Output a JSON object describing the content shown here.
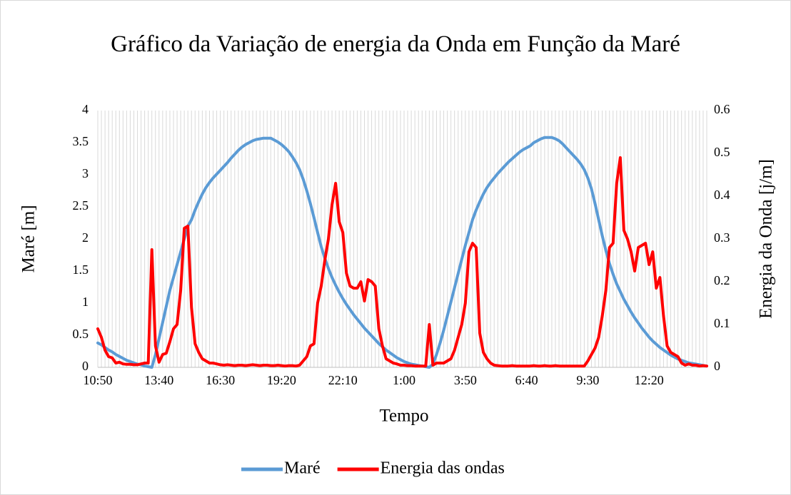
{
  "chart_data": {
    "type": "line",
    "title": "Gráfico da Variação de energia da Onda em Função da Maré",
    "x_label": "Tempo",
    "y_label": "Maré [m]",
    "y2_label": "Energia da Onda [j/m]",
    "categories": [
      "10:50",
      null,
      null,
      null,
      null,
      null,
      null,
      null,
      null,
      null,
      null,
      null,
      null,
      null,
      null,
      null,
      null,
      "13:40",
      null,
      null,
      null,
      null,
      null,
      null,
      null,
      null,
      null,
      null,
      null,
      null,
      null,
      null,
      null,
      null,
      "16:30",
      null,
      null,
      null,
      null,
      null,
      null,
      null,
      null,
      null,
      null,
      null,
      null,
      null,
      null,
      null,
      null,
      "19:20",
      null,
      null,
      null,
      null,
      null,
      null,
      null,
      null,
      null,
      null,
      null,
      null,
      null,
      null,
      null,
      null,
      "22:10",
      null,
      null,
      null,
      null,
      null,
      null,
      null,
      null,
      null,
      null,
      null,
      null,
      null,
      null,
      null,
      null,
      "1:00",
      null,
      null,
      null,
      null,
      null,
      null,
      null,
      null,
      null,
      null,
      null,
      null,
      null,
      null,
      null,
      null,
      "3:50",
      null,
      null,
      null,
      null,
      null,
      null,
      null,
      null,
      null,
      null,
      null,
      null,
      null,
      null,
      null,
      null,
      "6:40",
      null,
      null,
      null,
      null,
      null,
      null,
      null,
      null,
      null,
      null,
      null,
      null,
      null,
      null,
      null,
      null,
      "9:30",
      null,
      null,
      null,
      null,
      null,
      null,
      null,
      null,
      null,
      null,
      null,
      null,
      null,
      null,
      null,
      null,
      "12:20",
      null,
      null,
      null,
      null,
      null,
      null,
      null,
      null,
      null,
      null,
      null,
      null,
      null,
      null,
      null,
      null
    ],
    "series": [
      {
        "name": "Maré",
        "color": "#5b9bd5",
        "values": [
          0.38,
          0.35,
          0.31,
          0.27,
          0.24,
          0.2,
          0.17,
          0.14,
          0.11,
          0.09,
          0.07,
          0.05,
          0.04,
          0.02,
          0.01,
          0,
          0.2,
          0.45,
          0.7,
          0.95,
          1.2,
          1.4,
          1.6,
          1.8,
          2.0,
          2.2,
          2.3,
          2.45,
          2.58,
          2.7,
          2.8,
          2.88,
          2.95,
          3.01,
          3.07,
          3.13,
          3.19,
          3.26,
          3.32,
          3.38,
          3.43,
          3.47,
          3.5,
          3.53,
          3.55,
          3.56,
          3.57,
          3.57,
          3.57,
          3.54,
          3.51,
          3.47,
          3.42,
          3.36,
          3.28,
          3.19,
          3.08,
          2.93,
          2.75,
          2.55,
          2.33,
          2.1,
          1.88,
          1.7,
          1.54,
          1.4,
          1.28,
          1.17,
          1.07,
          0.98,
          0.9,
          0.82,
          0.75,
          0.68,
          0.61,
          0.55,
          0.49,
          0.43,
          0.37,
          0.32,
          0.27,
          0.23,
          0.19,
          0.15,
          0.12,
          0.09,
          0.07,
          0.05,
          0.04,
          0.03,
          0.02,
          0.01,
          0,
          0.05,
          0.2,
          0.38,
          0.58,
          0.8,
          1.02,
          1.24,
          1.46,
          1.68,
          1.9,
          2.1,
          2.3,
          2.45,
          2.58,
          2.7,
          2.8,
          2.88,
          2.95,
          3.02,
          3.08,
          3.14,
          3.2,
          3.25,
          3.3,
          3.35,
          3.39,
          3.42,
          3.45,
          3.5,
          3.53,
          3.56,
          3.58,
          3.58,
          3.58,
          3.56,
          3.53,
          3.48,
          3.42,
          3.36,
          3.3,
          3.24,
          3.17,
          3.08,
          2.95,
          2.78,
          2.55,
          2.3,
          2.05,
          1.82,
          1.62,
          1.45,
          1.3,
          1.18,
          1.06,
          0.96,
          0.86,
          0.77,
          0.69,
          0.61,
          0.54,
          0.47,
          0.41,
          0.36,
          0.31,
          0.27,
          0.23,
          0.19,
          0.16,
          0.13,
          0.11,
          0.09,
          0.07,
          0.06,
          0.05,
          0.04,
          0.03,
          0.02
        ]
      },
      {
        "name": "Energia das ondas",
        "color": "#ff0000",
        "axis": "y2",
        "values": [
          0.09,
          0.07,
          0.04,
          0.025,
          0.022,
          0.01,
          0.012,
          0.008,
          0.007,
          0.007,
          0.006,
          0.006,
          0.008,
          0.01,
          0.01,
          0.275,
          0.05,
          0.012,
          0.03,
          0.033,
          0.06,
          0.09,
          0.1,
          0.18,
          0.325,
          0.33,
          0.14,
          0.055,
          0.035,
          0.02,
          0.015,
          0.01,
          0.01,
          0.008,
          0.006,
          0.005,
          0.006,
          0.005,
          0.004,
          0.005,
          0.005,
          0.004,
          0.005,
          0.006,
          0.005,
          0.004,
          0.005,
          0.005,
          0.004,
          0.004,
          0.005,
          0.004,
          0.003,
          0.004,
          0.004,
          0.003,
          0.005,
          0.015,
          0.025,
          0.05,
          0.055,
          0.15,
          0.19,
          0.25,
          0.3,
          0.38,
          0.43,
          0.34,
          0.315,
          0.22,
          0.19,
          0.185,
          0.185,
          0.2,
          0.155,
          0.205,
          0.2,
          0.19,
          0.09,
          0.05,
          0.02,
          0.015,
          0.01,
          0.008,
          0.005,
          0.005,
          0.004,
          0.004,
          0.003,
          0.003,
          0.003,
          0.003,
          0.1,
          0.005,
          0.01,
          0.01,
          0.01,
          0.015,
          0.02,
          0.04,
          0.07,
          0.1,
          0.15,
          0.27,
          0.29,
          0.28,
          0.08,
          0.035,
          0.02,
          0.01,
          0.005,
          0.004,
          0.003,
          0.003,
          0.003,
          0.004,
          0.003,
          0.003,
          0.003,
          0.003,
          0.003,
          0.004,
          0.003,
          0.003,
          0.004,
          0.003,
          0.003,
          0.004,
          0.003,
          0.003,
          0.003,
          0.003,
          0.003,
          0.003,
          0.003,
          0.003,
          0.015,
          0.03,
          0.045,
          0.07,
          0.12,
          0.18,
          0.28,
          0.29,
          0.43,
          0.49,
          0.32,
          0.3,
          0.27,
          0.225,
          0.28,
          0.285,
          0.29,
          0.24,
          0.27,
          0.185,
          0.21,
          0.12,
          0.05,
          0.035,
          0.03,
          0.025,
          0.01,
          0.005,
          0.008,
          0.005,
          0.005,
          0.003,
          0.004,
          0.003
        ]
      }
    ],
    "ylim": [
      0,
      4
    ],
    "yticks": [
      0,
      0.5,
      1,
      1.5,
      2,
      2.5,
      3,
      3.5,
      4
    ],
    "y2lim": [
      0,
      0.6
    ],
    "y2ticks": [
      0,
      0.1,
      0.2,
      0.3,
      0.4,
      0.5,
      0.6
    ],
    "legend": "bottom"
  }
}
